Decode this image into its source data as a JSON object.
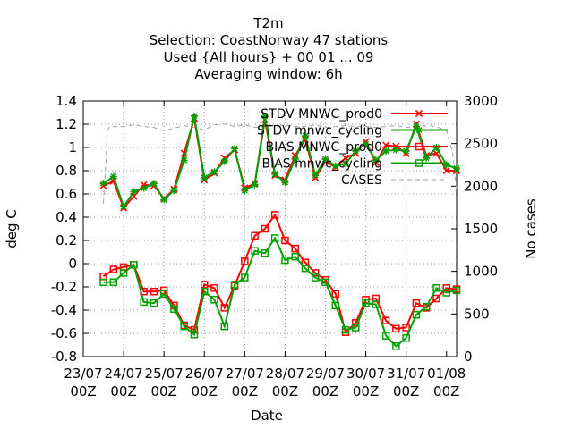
{
  "chart_data": {
    "type": "line",
    "title_lines": [
      "T2m",
      "Selection: CoastNorway     47 stations",
      "Used {All hours} + 00 01 ... 09",
      "Averaging window:  6h"
    ],
    "xlabel": "Date",
    "ylabel": "deg C",
    "y2label": "No cases",
    "ylim": [
      -0.8,
      1.4
    ],
    "y2lim": [
      0,
      3000
    ],
    "yticks": [
      "-0.8",
      "-0.6",
      "-0.4",
      "-0.2",
      "0",
      "0.2",
      "0.4",
      "0.6",
      "0.8",
      "1",
      "1.2",
      "1.4"
    ],
    "y2ticks": [
      "0",
      "500",
      "1000",
      "1500",
      "2000",
      "2500",
      "3000"
    ],
    "xticks": [
      {
        "date": "23/07",
        "hour": "00Z"
      },
      {
        "date": "24/07",
        "hour": "00Z"
      },
      {
        "date": "25/07",
        "hour": "00Z"
      },
      {
        "date": "26/07",
        "hour": "00Z"
      },
      {
        "date": "27/07",
        "hour": "00Z"
      },
      {
        "date": "28/07",
        "hour": "00Z"
      },
      {
        "date": "29/07",
        "hour": "00Z"
      },
      {
        "date": "30/07",
        "hour": "00Z"
      },
      {
        "date": "31/07",
        "hour": "00Z"
      },
      {
        "date": "01/08",
        "hour": "00Z"
      }
    ],
    "x_days": [
      0.5,
      0.75,
      1.0,
      1.25,
      1.5,
      1.75,
      2.0,
      2.25,
      2.5,
      2.75,
      3.0,
      3.25,
      3.5,
      3.75,
      4.0,
      4.25,
      4.5,
      4.75,
      5.0,
      5.25,
      5.5,
      5.75,
      6.0,
      6.25,
      6.5,
      6.75,
      7.0,
      7.25,
      7.5,
      7.75,
      8.0,
      8.25,
      8.5,
      8.75,
      9.0,
      9.25
    ],
    "grid": true,
    "legend_position": "top-right",
    "series": [
      {
        "name": "STDV MNWC_prod0",
        "color": "#ff0000",
        "marker": "x",
        "values": [
          0.67,
          0.71,
          0.48,
          0.58,
          0.68,
          0.67,
          0.56,
          0.64,
          0.95,
          1.25,
          0.72,
          0.78,
          0.91,
          0.98,
          0.65,
          0.69,
          1.24,
          0.76,
          0.72,
          0.93,
          1.07,
          0.74,
          0.88,
          0.83,
          0.91,
          0.95,
          1.05,
          0.87,
          1.02,
          1.01,
          0.95,
          1.2,
          0.93,
          0.95,
          0.8,
          0.8
        ]
      },
      {
        "name": "STDV mnwc_cycling",
        "color": "#00a000",
        "marker": "star",
        "values": [
          0.69,
          0.75,
          0.49,
          0.62,
          0.65,
          0.69,
          0.55,
          0.63,
          0.89,
          1.27,
          0.74,
          0.79,
          0.88,
          0.99,
          0.63,
          0.68,
          1.27,
          0.77,
          0.7,
          0.9,
          1.1,
          0.76,
          0.9,
          0.84,
          0.86,
          0.97,
          1.03,
          0.89,
          0.97,
          0.98,
          0.97,
          1.18,
          0.91,
          1.0,
          0.85,
          0.82
        ]
      },
      {
        "name": "BIAS MNWC_prod0",
        "color": "#ff0000",
        "marker": "square",
        "values": [
          -0.11,
          -0.05,
          -0.03,
          -0.01,
          -0.24,
          -0.24,
          -0.23,
          -0.36,
          -0.53,
          -0.57,
          -0.18,
          -0.21,
          -0.38,
          -0.19,
          0.02,
          0.24,
          0.3,
          0.42,
          0.2,
          0.13,
          0.01,
          -0.08,
          -0.14,
          -0.26,
          -0.59,
          -0.51,
          -0.31,
          -0.3,
          -0.49,
          -0.56,
          -0.55,
          -0.34,
          -0.38,
          -0.3,
          -0.21,
          -0.22
        ]
      },
      {
        "name": "BIAS mnwc_cycling",
        "color": "#00a000",
        "marker": "square",
        "values": [
          -0.16,
          -0.16,
          -0.08,
          -0.01,
          -0.33,
          -0.34,
          -0.26,
          -0.39,
          -0.54,
          -0.61,
          -0.24,
          -0.31,
          -0.54,
          -0.18,
          -0.12,
          0.11,
          0.09,
          0.22,
          0.03,
          0.06,
          -0.04,
          -0.12,
          -0.16,
          -0.36,
          -0.57,
          -0.55,
          -0.34,
          -0.35,
          -0.62,
          -0.71,
          -0.64,
          -0.44,
          -0.37,
          -0.21,
          -0.25,
          -0.23
        ]
      },
      {
        "name": "CASES",
        "color": "#a0a0a0",
        "marker": "none",
        "axis": "right",
        "x_days": [
          0.5,
          0.55,
          0.6,
          0.65,
          0.75,
          1.0,
          1.25,
          1.5,
          1.75,
          2.0,
          2.25,
          2.5,
          2.75,
          3.0,
          3.25,
          3.5,
          3.75,
          4.0,
          4.25,
          4.5,
          4.75,
          5.0,
          5.25,
          5.5,
          5.75,
          6.0,
          6.25,
          6.5,
          6.75,
          7.0,
          7.25,
          7.5,
          7.75,
          8.0,
          8.25,
          8.5,
          8.75,
          9.0,
          9.15,
          9.25
        ],
        "values": [
          1800,
          2200,
          2650,
          2700,
          2700,
          2700,
          2720,
          2700,
          2690,
          2650,
          2680,
          2710,
          2690,
          2660,
          2720,
          2730,
          2700,
          2720,
          2690,
          2700,
          2710,
          2720,
          2700,
          2700,
          2720,
          2690,
          2700,
          2710,
          2700,
          2700,
          2690,
          2700,
          2710,
          2690,
          2700,
          2710,
          2700,
          2650,
          2400,
          1950
        ]
      }
    ]
  }
}
